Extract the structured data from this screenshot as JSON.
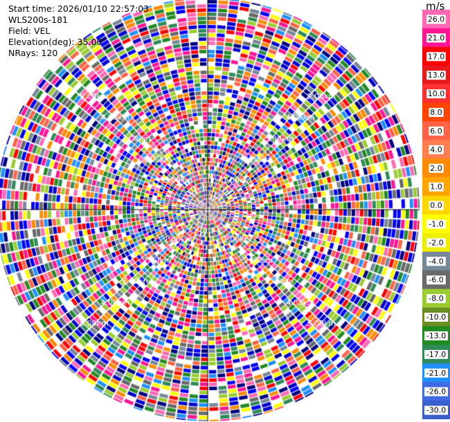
{
  "header": {
    "start_time": "Start time: 2026/01/10 22:57:03",
    "instrument": "WLS200s-181",
    "field": "Field: VEL",
    "elevation": "Elevation(deg): 35.00",
    "nrays": "NRays: 120"
  },
  "chart_data": {
    "type": "heatmap",
    "projection": "polar PPI",
    "field": "VEL",
    "units": "m/s",
    "n_rays": 120,
    "elevation_deg": 35.0,
    "range_rings_km": [
      "1.00km",
      "2.00km",
      "3.00km",
      "4.00km",
      "5.00km"
    ],
    "colorbar": {
      "unit_label": "m/s",
      "tick_labels": [
        "26.0",
        "21.0",
        "17.0",
        "13.0",
        "10.0",
        "8.0",
        "6.0",
        "4.0",
        "2.0",
        "1.0",
        "0.0",
        "-1.0",
        "-2.0",
        "-4.0",
        "-6.0",
        "-8.0",
        "-10.0",
        "-13.0",
        "-17.0",
        "-21.0",
        "-26.0",
        "-30.0"
      ],
      "colors": [
        "#ff69b4",
        "#ff1493",
        "#ff0000",
        "#e8191c",
        "#ff3030",
        "#ff4500",
        "#ff6347",
        "#ff7f50",
        "#ff8c00",
        "#ffa500",
        "#ffd700",
        "#ffff00",
        "#eeee00",
        "#778899",
        "#696969",
        "#9acd32",
        "#6b8e23",
        "#228b22",
        "#2e8b57",
        "#1e90ff",
        "#4169e1",
        "#3a5fcd",
        "#0000ff",
        "#0000cd",
        "#000080",
        "#191970"
      ]
    },
    "background_colors": [
      "#ff1493",
      "#ff69b4",
      "#0000ff",
      "#0000cd",
      "#000080",
      "#ff0000",
      "#ffff00",
      "#ff8c00",
      "#228b22",
      "#2e8b57",
      "#1e90ff",
      "#9acd32",
      "#696969",
      "#778899",
      "#ff6347"
    ]
  }
}
